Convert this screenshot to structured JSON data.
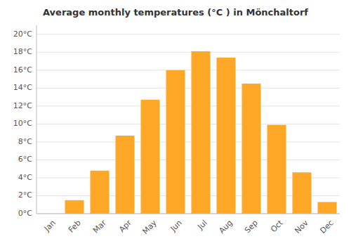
{
  "chart_data": {
    "type": "bar",
    "title": "Average monthly temperatures (°C ) in Mönchaltorf",
    "categories": [
      "Jan",
      "Feb",
      "Mar",
      "Apr",
      "May",
      "Jun",
      "Jul",
      "Aug",
      "Sep",
      "Oct",
      "Nov",
      "Dec"
    ],
    "values": [
      0.0,
      1.5,
      4.8,
      8.7,
      12.7,
      16.0,
      18.1,
      17.4,
      14.5,
      9.9,
      4.6,
      1.3
    ],
    "color": "#FFA726",
    "ylim": [
      0,
      21
    ],
    "yticks": [
      {
        "value": 0,
        "label": "0°C"
      },
      {
        "value": 2,
        "label": "2°C"
      },
      {
        "value": 4,
        "label": "4°C"
      },
      {
        "value": 6,
        "label": "6°C"
      },
      {
        "value": 8,
        "label": "8°C"
      },
      {
        "value": 10,
        "label": "10°C"
      },
      {
        "value": 12,
        "label": "12°C"
      },
      {
        "value": 14,
        "label": "14°C"
      },
      {
        "value": 16,
        "label": "16°C"
      },
      {
        "value": 18,
        "label": "18°C"
      },
      {
        "value": 20,
        "label": "20°C"
      }
    ],
    "grid": true
  }
}
